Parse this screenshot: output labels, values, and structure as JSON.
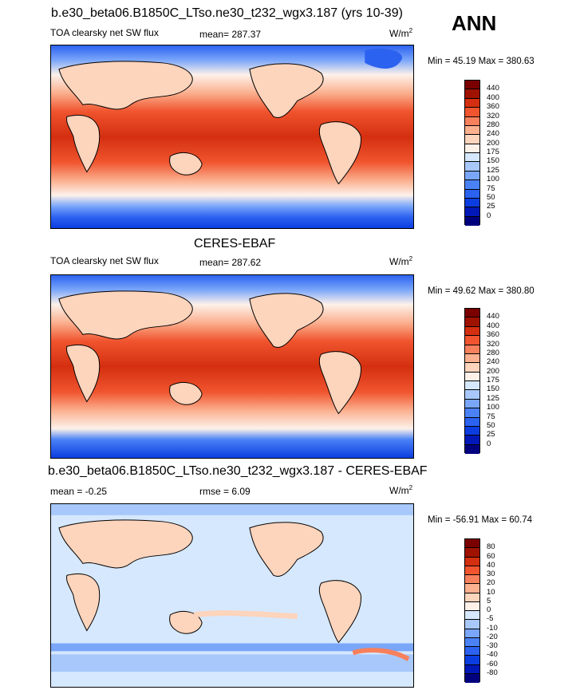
{
  "season": "ANN",
  "panels": [
    {
      "title": "b.e30_beta06.B1850C_LTso.ne30_t232_wgx3.187 (yrs 10-39)",
      "variable": "TOA clearsky net SW flux",
      "mean_text": "mean= 287.37",
      "rmse_text": "",
      "units_base": "W/m",
      "units_sup": "2",
      "minmax": "Min = 45.19 Max = 380.63"
    },
    {
      "title": "CERES-EBAF",
      "variable": "TOA clearsky net SW flux",
      "mean_text": "mean= 287.62",
      "rmse_text": "",
      "units_base": "W/m",
      "units_sup": "2",
      "minmax": "Min = 49.62 Max = 380.80"
    },
    {
      "title": "b.e30_beta06.B1850C_LTso.ne30_t232_wgx3.187 - CERES-EBAF",
      "variable": "",
      "mean_text": "mean =  -0.25",
      "rmse_text": "rmse =   6.09",
      "units_base": "W/m",
      "units_sup": "2",
      "minmax": "Min = -56.91 Max =  60.74"
    }
  ],
  "chart_data": [
    {
      "type": "heatmap",
      "title": "b.e30_beta06.B1850C_LTso.ne30_t232_wgx3.187 (yrs 10-39)",
      "subtitle": "TOA clearsky net SW flux",
      "units": "W/m2",
      "mean": 287.37,
      "min": 45.19,
      "max": 380.63,
      "colorbar_levels": [
        0,
        25,
        50,
        75,
        100,
        125,
        150,
        175,
        200,
        240,
        280,
        320,
        360,
        400,
        440
      ],
      "colors": [
        "#00007f",
        "#0018b8",
        "#0c3de0",
        "#2c62f0",
        "#4a82f6",
        "#7aa6fa",
        "#a8c8fc",
        "#d6e8fe",
        "#fdf1ea",
        "#fdd4bc",
        "#fbb08f",
        "#f7805d",
        "#f0552f",
        "#d42f10",
        "#a01200",
        "#7a0000"
      ]
    },
    {
      "type": "heatmap",
      "title": "CERES-EBAF",
      "subtitle": "TOA clearsky net SW flux",
      "units": "W/m2",
      "mean": 287.62,
      "min": 49.62,
      "max": 380.8,
      "colorbar_levels": [
        0,
        25,
        50,
        75,
        100,
        125,
        150,
        175,
        200,
        240,
        280,
        320,
        360,
        400,
        440
      ],
      "colors": [
        "#00007f",
        "#0018b8",
        "#0c3de0",
        "#2c62f0",
        "#4a82f6",
        "#7aa6fa",
        "#a8c8fc",
        "#d6e8fe",
        "#fdf1ea",
        "#fdd4bc",
        "#fbb08f",
        "#f7805d",
        "#f0552f",
        "#d42f10",
        "#a01200",
        "#7a0000"
      ]
    },
    {
      "type": "heatmap",
      "title": "b.e30_beta06.B1850C_LTso.ne30_t232_wgx3.187 - CERES-EBAF",
      "units": "W/m2",
      "mean": -0.25,
      "rmse": 6.09,
      "min": -56.91,
      "max": 60.74,
      "colorbar_levels": [
        -80,
        -60,
        -40,
        -30,
        -20,
        -10,
        -5,
        0,
        5,
        10,
        20,
        30,
        40,
        60,
        80
      ],
      "colors": [
        "#00007f",
        "#0018b8",
        "#0c3de0",
        "#2c62f0",
        "#4a82f6",
        "#7aa6fa",
        "#a8c8fc",
        "#d6e8fe",
        "#fdf1ea",
        "#fdd4bc",
        "#fbb08f",
        "#f7805d",
        "#f0552f",
        "#d42f10",
        "#a01200",
        "#7a0000"
      ]
    }
  ]
}
